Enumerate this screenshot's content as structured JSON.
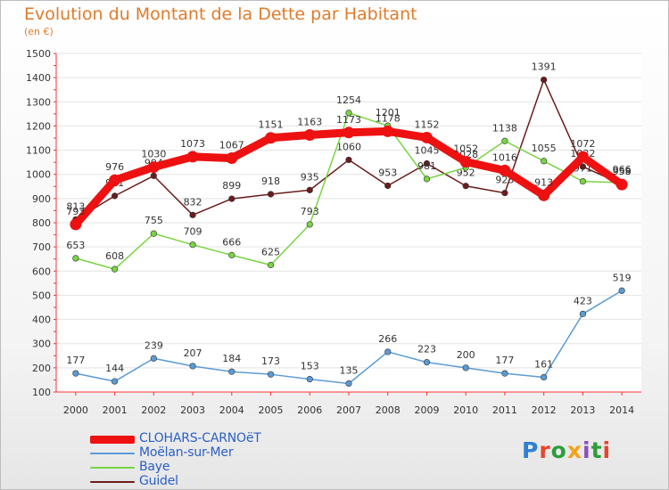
{
  "title": "Evolution du Montant de la Dette par Habitant",
  "subtitle": "(en €)",
  "logo": {
    "text": "Proxiti",
    "letter_colors": [
      "#2d7fd3",
      "#e8452c",
      "#2d9e3a",
      "#f3a21b",
      "#8a4fbf",
      "#2d9e3a",
      "#e8452c"
    ]
  },
  "chart_data": {
    "type": "line",
    "title": "Evolution du Montant de la Dette par Habitant",
    "ylabel": "(en €)",
    "xlabel": "",
    "x": [
      "2000",
      "2001",
      "2002",
      "2003",
      "2004",
      "2005",
      "2006",
      "2007",
      "2008",
      "2009",
      "2010",
      "2011",
      "2012",
      "2013",
      "2014"
    ],
    "ylim": [
      100,
      1500
    ],
    "yticks": [
      100,
      200,
      300,
      400,
      500,
      600,
      700,
      800,
      900,
      1000,
      1100,
      1200,
      1300,
      1400,
      1500
    ],
    "grid": true,
    "legend": "bottom-left",
    "series": [
      {
        "name": "Guidel",
        "color": "#6b1c1c",
        "values": [
          813,
          911,
          994,
          832,
          899,
          918,
          935,
          1060,
          953,
          1045,
          952,
          923,
          1391,
          1032,
          959
        ],
        "labels": [
          "813",
          "911",
          "994",
          "832",
          "899",
          "918",
          "935",
          "1060",
          "953",
          "1045",
          "952",
          "923",
          "1391",
          "1032",
          "959"
        ]
      },
      {
        "name": "Baye",
        "color": "#79d443",
        "values": [
          653,
          608,
          755,
          709,
          666,
          625,
          793,
          1254,
          1201,
          981,
          1028,
          1138,
          1055,
          971,
          966
        ],
        "labels": [
          "653",
          "608",
          "755",
          "709",
          "666",
          "625",
          "793",
          "1254",
          "1201",
          "981",
          "1028",
          "1138",
          "1055",
          "971",
          "966"
        ]
      },
      {
        "name": "Moëlan-sur-Mer",
        "color": "#5b9bd5",
        "values": [
          177,
          144,
          239,
          207,
          184,
          173,
          153,
          135,
          266,
          223,
          200,
          177,
          161,
          423,
          519
        ],
        "labels": [
          "177",
          "144",
          "239",
          "207",
          "184",
          "173",
          "153",
          "135",
          "266",
          "223",
          "200",
          "177",
          "161",
          "423",
          "519"
        ]
      },
      {
        "name": "CLOHARS-CARNOëT",
        "color": "#ee1111",
        "values": [
          793,
          976,
          1030,
          1073,
          1067,
          1151,
          1163,
          1173,
          1178,
          1152,
          1052,
          1016,
          913,
          1072,
          958
        ],
        "labels": [
          "793",
          "976",
          "1030",
          "1073",
          "1067",
          "1151",
          "1163",
          "1173",
          "1178",
          "1152",
          "1052",
          "1016",
          "913",
          "1072",
          "958"
        ]
      }
    ]
  }
}
